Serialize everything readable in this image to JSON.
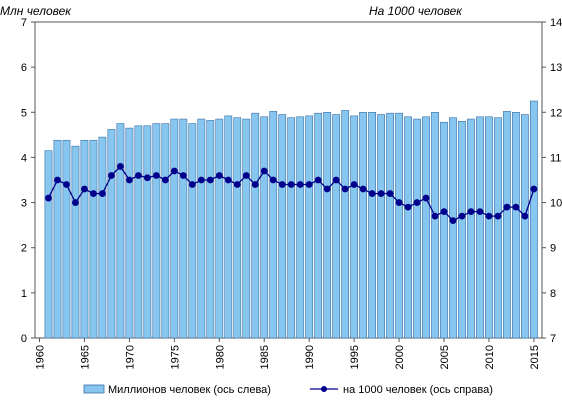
{
  "chart_data": {
    "type": "bar",
    "left_unit": "Млн  человек",
    "right_unit": "На 1000 человек",
    "years": [
      1961,
      1962,
      1963,
      1964,
      1965,
      1966,
      1967,
      1968,
      1969,
      1970,
      1971,
      1972,
      1973,
      1974,
      1975,
      1976,
      1977,
      1978,
      1979,
      1980,
      1981,
      1982,
      1983,
      1984,
      1985,
      1986,
      1987,
      1988,
      1989,
      1990,
      1991,
      1992,
      1993,
      1994,
      1995,
      1996,
      1997,
      1998,
      1999,
      2000,
      2001,
      2002,
      2003,
      2004,
      2005,
      2006,
      2007,
      2008,
      2009,
      2010,
      2011,
      2012,
      2013,
      2014,
      2015
    ],
    "x_tick_labels": [
      "1960",
      "1965",
      "1970",
      "1975",
      "1980",
      "1985",
      "1990",
      "1995",
      "2000",
      "2005",
      "2010",
      "2015"
    ],
    "ylim_left": [
      0,
      7
    ],
    "yticks_left": [
      "0",
      "1",
      "2",
      "3",
      "4",
      "5",
      "6",
      "7"
    ],
    "ylim_right": [
      7,
      14
    ],
    "yticks_right": [
      "7",
      "8",
      "9",
      "10",
      "11",
      "12",
      "13",
      "14"
    ],
    "series": [
      {
        "name": "Миллионов   человек (ось слева)",
        "type": "bar",
        "axis": "left",
        "color": "#87C6EE",
        "values": [
          4.15,
          4.38,
          4.38,
          4.25,
          4.38,
          4.38,
          4.45,
          4.62,
          4.75,
          4.65,
          4.7,
          4.7,
          4.75,
          4.75,
          4.85,
          4.85,
          4.75,
          4.85,
          4.82,
          4.85,
          4.92,
          4.88,
          4.85,
          4.98,
          4.9,
          5.02,
          4.95,
          4.88,
          4.9,
          4.92,
          4.98,
          5.0,
          4.95,
          5.04,
          4.92,
          5.0,
          5.0,
          4.95,
          4.98,
          4.98,
          4.9,
          4.85,
          4.9,
          5.0,
          4.78,
          4.88,
          4.8,
          4.85,
          4.9,
          4.9,
          4.88,
          5.02,
          5.0,
          4.95,
          5.25
        ]
      },
      {
        "name": "на 1000  человек (ось справа)",
        "type": "line",
        "axis": "right",
        "color": "#00008C",
        "values": [
          10.1,
          10.5,
          10.4,
          10.0,
          10.3,
          10.2,
          10.2,
          10.6,
          10.8,
          10.5,
          10.6,
          10.55,
          10.6,
          10.5,
          10.7,
          10.6,
          10.4,
          10.5,
          10.5,
          10.6,
          10.5,
          10.4,
          10.6,
          10.4,
          10.7,
          10.5,
          10.4,
          10.4,
          10.4,
          10.4,
          10.5,
          10.3,
          10.5,
          10.3,
          10.4,
          10.3,
          10.2,
          10.2,
          10.2,
          10.0,
          9.9,
          10.0,
          10.1,
          9.7,
          9.8,
          9.6,
          9.7,
          9.8,
          9.8,
          9.7,
          9.7,
          9.9,
          9.9,
          9.7,
          10.3
        ]
      }
    ],
    "grid": false,
    "legend": "bottom"
  }
}
